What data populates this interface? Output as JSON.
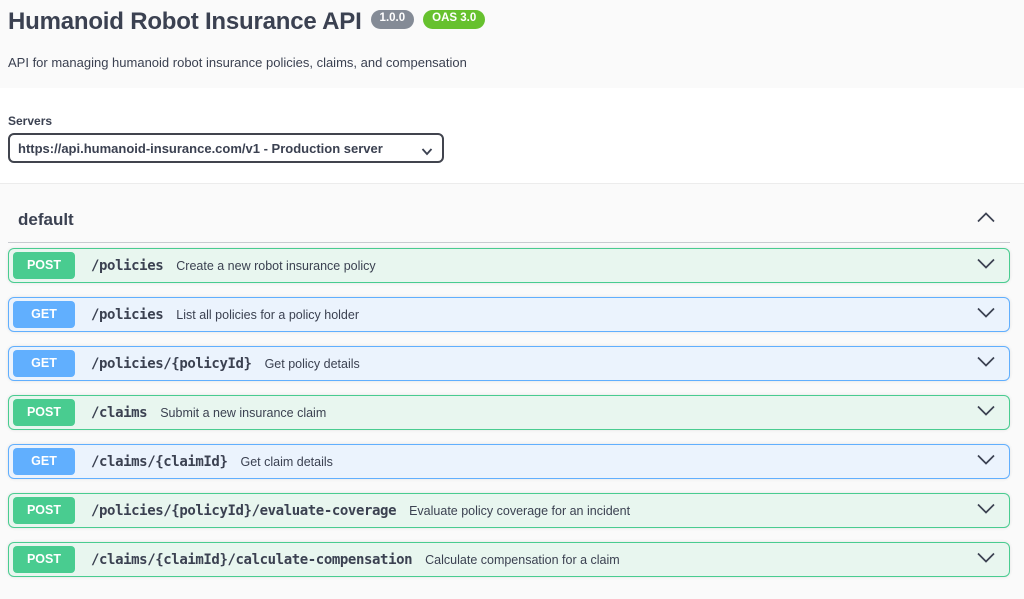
{
  "header": {
    "title": "Humanoid Robot Insurance API",
    "version_badge": "1.0.0",
    "oas_badge": "OAS 3.0",
    "description": "API for managing humanoid robot insurance policies, claims, and compensation"
  },
  "servers": {
    "label": "Servers",
    "selected": "https://api.humanoid-insurance.com/v1 - Production server"
  },
  "section": {
    "title": "default",
    "state": "expanded",
    "collapse_icon": "chevron-up-icon"
  },
  "operations": [
    {
      "method": "POST",
      "path": "/policies",
      "summary": "Create a new robot insurance policy"
    },
    {
      "method": "GET",
      "path": "/policies",
      "summary": "List all policies for a policy holder"
    },
    {
      "method": "GET",
      "path": "/policies/{policyId}",
      "summary": "Get policy details"
    },
    {
      "method": "POST",
      "path": "/claims",
      "summary": "Submit a new insurance claim"
    },
    {
      "method": "GET",
      "path": "/claims/{claimId}",
      "summary": "Get claim details"
    },
    {
      "method": "POST",
      "path": "/policies/{policyId}/evaluate-coverage",
      "summary": "Evaluate policy coverage for an incident"
    },
    {
      "method": "POST",
      "path": "/claims/{claimId}/calculate-compensation",
      "summary": "Calculate compensation for a claim"
    }
  ],
  "icons": {
    "row_expand": "chevron-down-icon",
    "server_select": "chevron-down-icon"
  },
  "colors": {
    "text": "#3b4151",
    "post": "#49cc90",
    "post_bg": "#e8f6ef",
    "get": "#61affe",
    "get_bg": "#ebf3fd",
    "version_badge_bg": "#848b96",
    "oas_badge_bg": "#66c12e"
  }
}
